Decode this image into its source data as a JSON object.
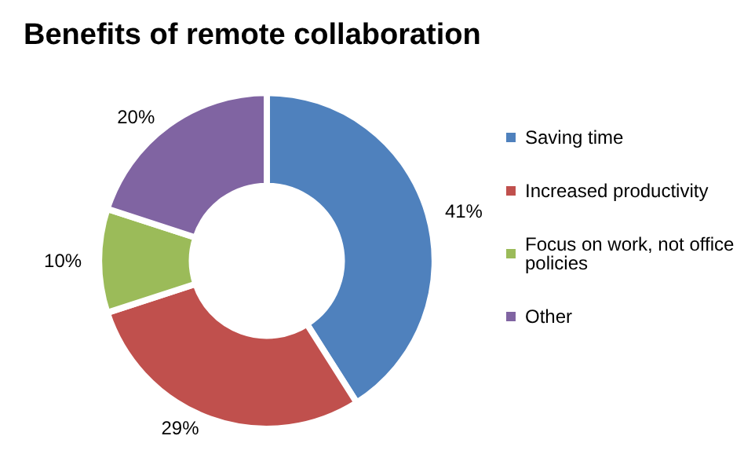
{
  "chart_data": {
    "type": "donut",
    "title": "Benefits of remote collaboration",
    "categories": [
      "Saving time",
      "Increased productivity",
      "Focus on work, not office policies",
      "Other"
    ],
    "values": [
      41,
      29,
      10,
      20
    ],
    "value_labels": [
      "41%",
      "29%",
      "10%",
      "20%"
    ],
    "colors": [
      "#4f81bd",
      "#c0504d",
      "#9bbb59",
      "#8064a2"
    ],
    "legend": "right"
  }
}
